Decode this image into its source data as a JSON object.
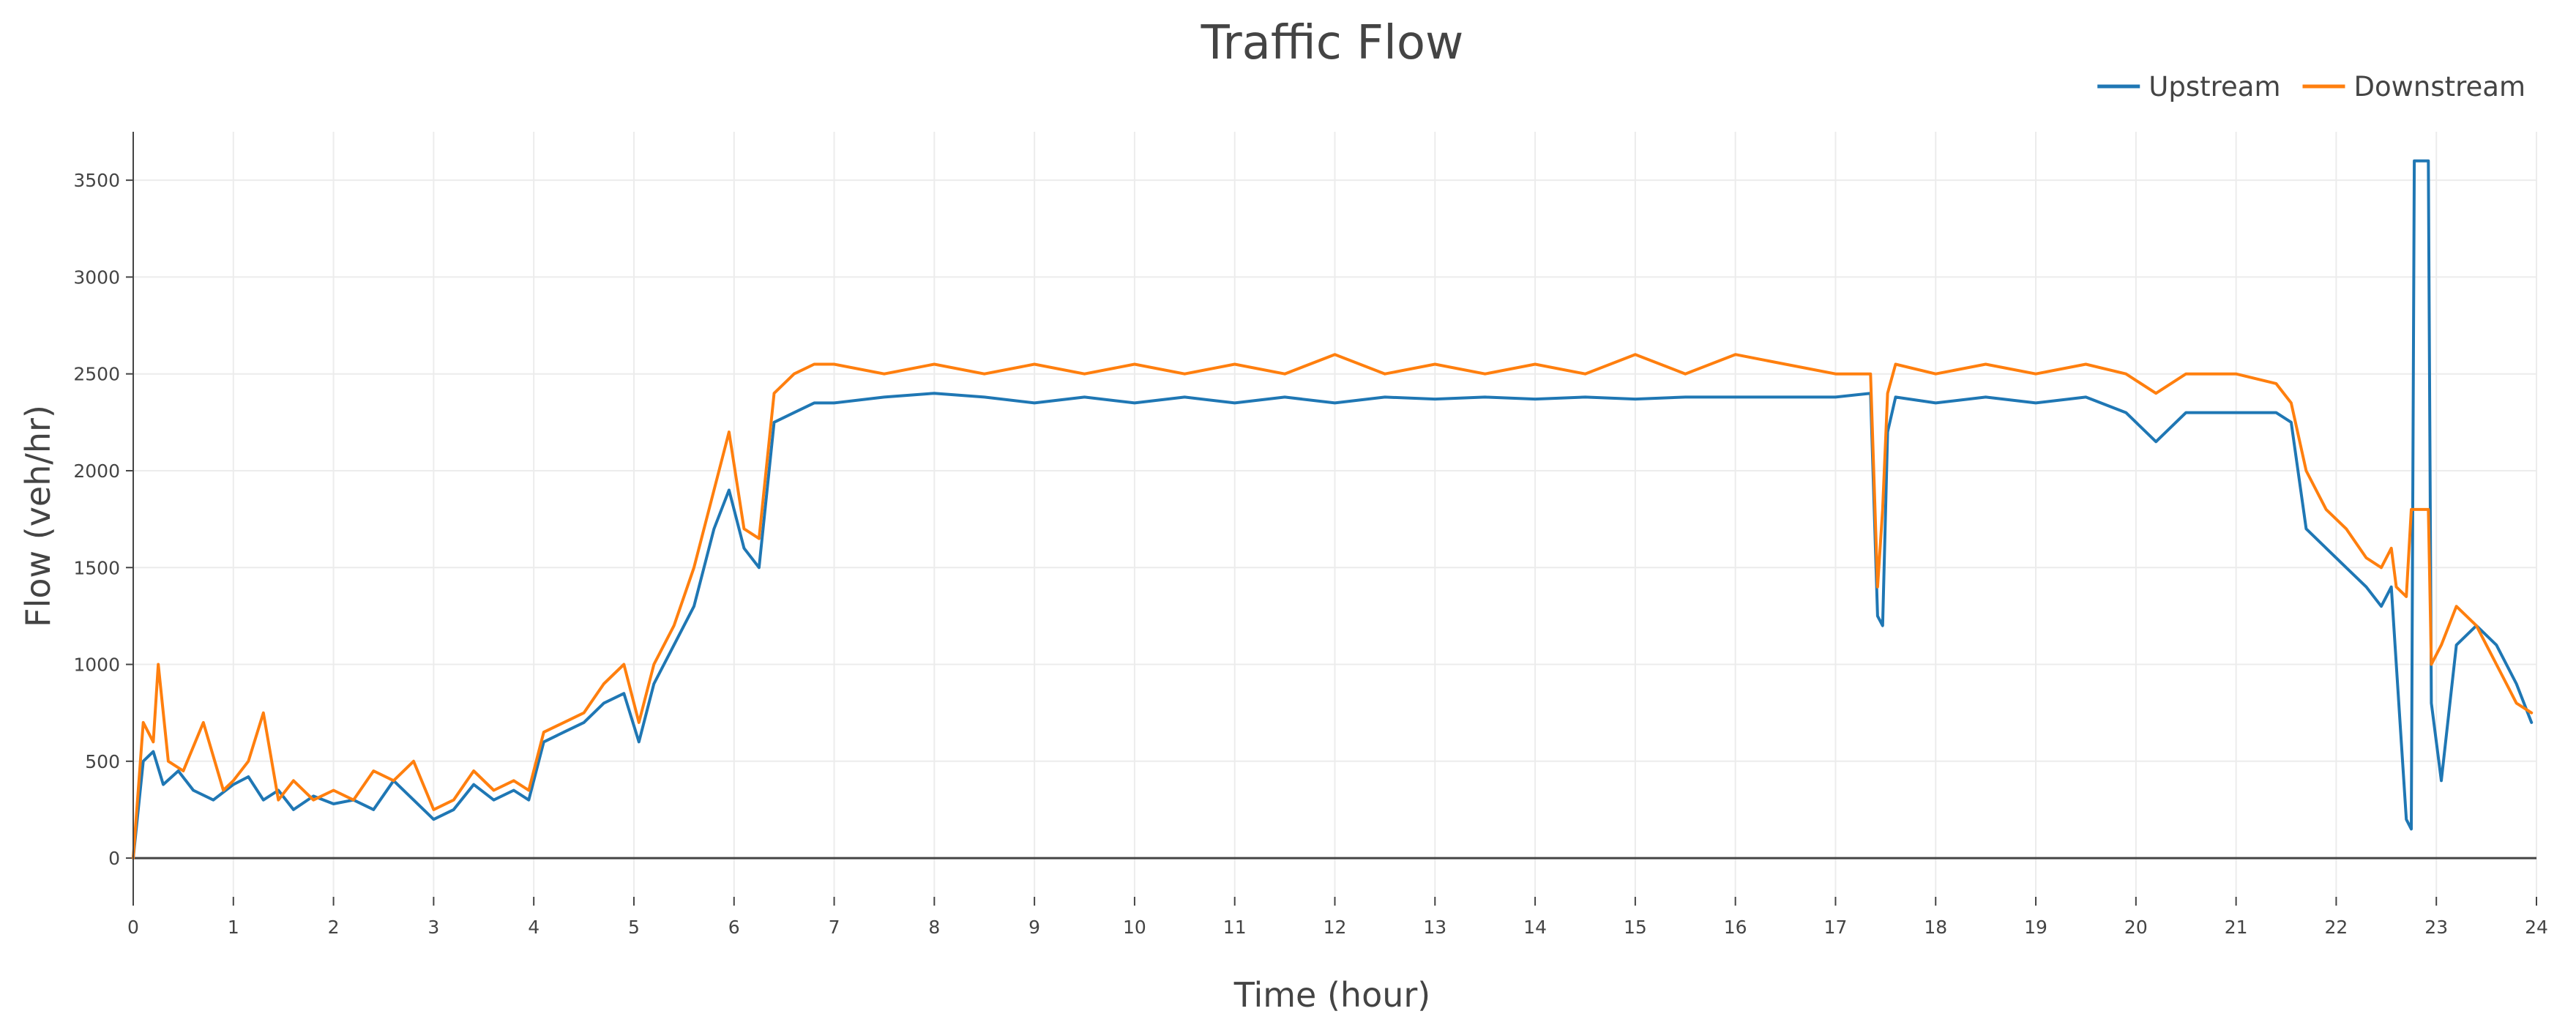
{
  "chart_data": {
    "type": "line",
    "title": "Traffic Flow",
    "xlabel": "Time (hour)",
    "ylabel": "Flow (veh/hr)",
    "xlim": [
      0,
      24
    ],
    "ylim": [
      -200,
      3750
    ],
    "x_ticks": [
      0,
      1,
      2,
      3,
      4,
      5,
      6,
      7,
      8,
      9,
      10,
      11,
      12,
      13,
      14,
      15,
      16,
      17,
      18,
      19,
      20,
      21,
      22,
      23,
      24
    ],
    "y_ticks": [
      0,
      500,
      1000,
      1500,
      2000,
      2500,
      3000,
      3500
    ],
    "grid": true,
    "legend_position": "top-right",
    "series": [
      {
        "name": "Upstream",
        "color": "#1f77b4",
        "x": [
          0,
          0.1,
          0.2,
          0.3,
          0.45,
          0.6,
          0.8,
          1.0,
          1.15,
          1.3,
          1.45,
          1.6,
          1.8,
          2.0,
          2.2,
          2.4,
          2.6,
          2.8,
          3.0,
          3.2,
          3.4,
          3.6,
          3.8,
          3.95,
          4.1,
          4.3,
          4.5,
          4.7,
          4.9,
          5.05,
          5.2,
          5.4,
          5.6,
          5.8,
          5.95,
          6.1,
          6.25,
          6.4,
          6.6,
          6.8,
          7.0,
          7.5,
          8.0,
          8.5,
          9.0,
          9.5,
          10.0,
          10.5,
          11.0,
          11.5,
          12.0,
          12.5,
          13.0,
          13.5,
          14.0,
          14.5,
          15.0,
          15.5,
          16.0,
          16.5,
          17.0,
          17.35,
          17.42,
          17.47,
          17.52,
          17.6,
          18.0,
          18.5,
          19.0,
          19.5,
          19.9,
          20.2,
          20.5,
          21.0,
          21.4,
          21.55,
          21.7,
          21.9,
          22.1,
          22.3,
          22.45,
          22.55,
          22.6,
          22.7,
          22.75,
          22.78,
          22.92,
          22.95,
          23.05,
          23.2,
          23.4,
          23.6,
          23.8,
          23.95
        ],
        "y": [
          0,
          500,
          550,
          380,
          450,
          350,
          300,
          380,
          420,
          300,
          350,
          250,
          320,
          280,
          300,
          250,
          400,
          300,
          200,
          250,
          380,
          300,
          350,
          300,
          600,
          650,
          700,
          800,
          850,
          600,
          900,
          1100,
          1300,
          1700,
          1900,
          1600,
          1500,
          2250,
          2300,
          2350,
          2350,
          2380,
          2400,
          2380,
          2350,
          2380,
          2350,
          2380,
          2350,
          2380,
          2350,
          2380,
          2370,
          2380,
          2370,
          2380,
          2370,
          2380,
          2380,
          2380,
          2380,
          2400,
          1250,
          1200,
          2200,
          2380,
          2350,
          2380,
          2350,
          2380,
          2300,
          2150,
          2300,
          2300,
          2300,
          2250,
          1700,
          1600,
          1500,
          1400,
          1300,
          1400,
          1000,
          200,
          150,
          3600,
          3600,
          800,
          400,
          1100,
          1200,
          1100,
          900,
          700
        ]
      },
      {
        "name": "Downstream",
        "color": "#ff7f0e",
        "x": [
          0,
          0.1,
          0.2,
          0.25,
          0.35,
          0.5,
          0.7,
          0.9,
          1.0,
          1.15,
          1.3,
          1.45,
          1.6,
          1.8,
          2.0,
          2.2,
          2.4,
          2.6,
          2.8,
          3.0,
          3.2,
          3.4,
          3.6,
          3.8,
          3.95,
          4.1,
          4.3,
          4.5,
          4.7,
          4.9,
          5.05,
          5.2,
          5.4,
          5.6,
          5.8,
          5.95,
          6.1,
          6.25,
          6.4,
          6.6,
          6.8,
          7.0,
          7.5,
          8.0,
          8.5,
          9.0,
          9.5,
          10.0,
          10.5,
          11.0,
          11.5,
          12.0,
          12.5,
          13.0,
          13.5,
          14.0,
          14.5,
          15.0,
          15.5,
          16.0,
          16.5,
          17.0,
          17.35,
          17.42,
          17.47,
          17.52,
          17.6,
          18.0,
          18.5,
          19.0,
          19.5,
          19.9,
          20.2,
          20.5,
          21.0,
          21.4,
          21.55,
          21.7,
          21.9,
          22.1,
          22.3,
          22.45,
          22.55,
          22.6,
          22.7,
          22.75,
          22.78,
          22.92,
          22.95,
          23.05,
          23.2,
          23.4,
          23.6,
          23.8,
          23.95
        ],
        "y": [
          0,
          700,
          600,
          1000,
          500,
          450,
          700,
          350,
          400,
          500,
          750,
          300,
          400,
          300,
          350,
          300,
          450,
          400,
          500,
          250,
          300,
          450,
          350,
          400,
          350,
          650,
          700,
          750,
          900,
          1000,
          700,
          1000,
          1200,
          1500,
          1900,
          2200,
          1700,
          1650,
          2400,
          2500,
          2550,
          2550,
          2500,
          2550,
          2500,
          2550,
          2500,
          2550,
          2500,
          2550,
          2500,
          2600,
          2500,
          2550,
          2500,
          2550,
          2500,
          2600,
          2500,
          2600,
          2550,
          2500,
          2500,
          1400,
          1800,
          2400,
          2550,
          2500,
          2550,
          2500,
          2550,
          2500,
          2400,
          2500,
          2500,
          2450,
          2350,
          2000,
          1800,
          1700,
          1550,
          1500,
          1600,
          1400,
          1350,
          1800,
          1800,
          1800,
          1000,
          1100,
          1300,
          1200,
          1000,
          800,
          750
        ]
      }
    ]
  }
}
